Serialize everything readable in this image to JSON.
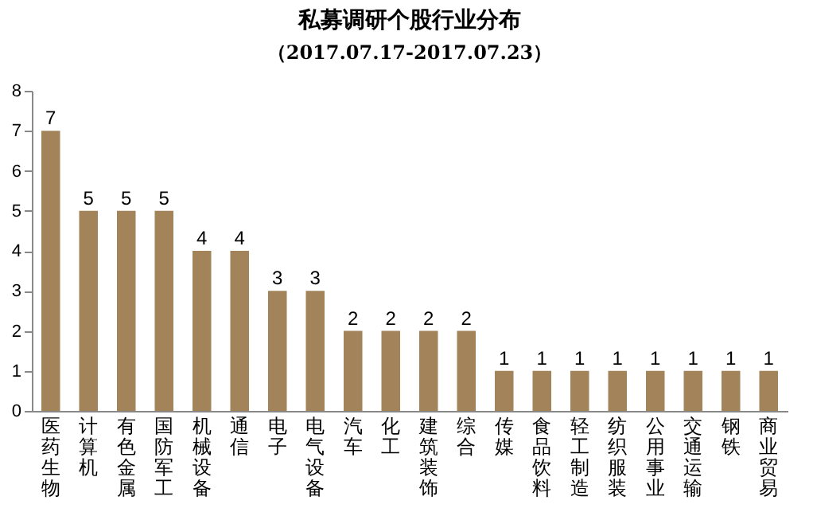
{
  "chart_data": {
    "type": "bar",
    "title": "私募调研个股行业分布",
    "subtitle": "（2017.07.17-2017.07.23）",
    "categories": [
      "医药生物",
      "计算机",
      "有色金属",
      "国防军工",
      "机械设备",
      "通信",
      "电子",
      "电气设备",
      "汽车",
      "化工",
      "建筑装饰",
      "综合",
      "传媒",
      "食品饮料",
      "轻工制造",
      "纺织服装",
      "公用事业",
      "交通运输",
      "钢铁",
      "商业贸易"
    ],
    "values": [
      7,
      5,
      5,
      5,
      4,
      4,
      3,
      3,
      2,
      2,
      2,
      2,
      1,
      1,
      1,
      1,
      1,
      1,
      1,
      1
    ],
    "color": "#a3845a",
    "ylim": [
      0,
      8
    ],
    "yticks": [
      0,
      1,
      2,
      3,
      4,
      5,
      6,
      7,
      8
    ],
    "grid": false,
    "data_labels": true
  }
}
